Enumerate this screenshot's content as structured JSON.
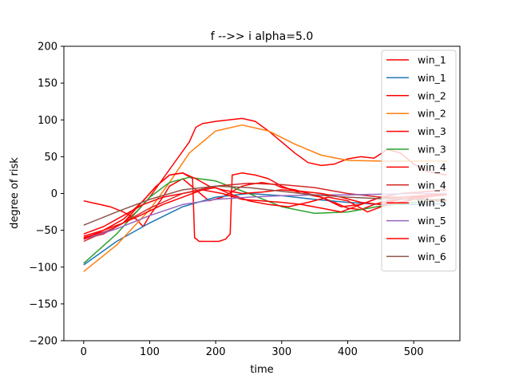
{
  "chart_data": {
    "type": "line",
    "title": "f -->> i  alpha=5.0",
    "xlabel": "time",
    "ylabel": "degree of risk",
    "xlim": [
      -30,
      570
    ],
    "ylim": [
      -200,
      200
    ],
    "xticks": [
      0,
      100,
      200,
      300,
      400,
      500
    ],
    "yticks": [
      -200,
      -150,
      -100,
      -50,
      0,
      50,
      100,
      150,
      200
    ],
    "grid": false,
    "legend_position": "top-right",
    "series": [
      {
        "name": "win_1",
        "color": "#ff0000",
        "x": [
          0,
          10,
          20,
          40,
          60,
          80,
          90,
          100,
          120,
          130,
          150,
          170,
          190,
          210,
          230,
          240,
          250,
          270,
          290,
          300,
          320,
          340,
          360,
          380,
          400,
          420,
          440,
          460,
          480,
          500,
          520,
          550
        ],
        "y": [
          -10,
          -12,
          -14,
          -18,
          -25,
          -35,
          -45,
          -30,
          -5,
          10,
          20,
          5,
          -10,
          -5,
          5,
          10,
          12,
          15,
          12,
          8,
          5,
          0,
          -5,
          -12,
          -20,
          -22,
          -15,
          -10,
          -8,
          -5,
          -2,
          0
        ]
      },
      {
        "name": "win_1",
        "color": "#1f77b4",
        "x": [
          0,
          50,
          100,
          150,
          200,
          250,
          300,
          350,
          400,
          450,
          500,
          550
        ],
        "y": [
          -97,
          -65,
          -40,
          -18,
          -5,
          0,
          -3,
          -8,
          -12,
          -15,
          -15,
          -14
        ]
      },
      {
        "name": "win_2",
        "color": "#ff0000",
        "x": [
          0,
          20,
          40,
          60,
          80,
          100,
          120,
          140,
          160,
          170,
          180,
          200,
          220,
          240,
          260,
          280,
          300,
          320,
          340,
          360,
          380,
          400,
          420,
          440,
          460,
          480,
          500,
          520,
          550
        ],
        "y": [
          -60,
          -55,
          -50,
          -40,
          -25,
          -5,
          20,
          45,
          70,
          90,
          95,
          98,
          100,
          102,
          98,
          85,
          70,
          55,
          42,
          38,
          40,
          47,
          50,
          48,
          60,
          55,
          40,
          30,
          25
        ]
      },
      {
        "name": "win_2",
        "color": "#ff7f0e",
        "x": [
          0,
          50,
          100,
          130,
          160,
          200,
          240,
          280,
          320,
          360,
          400,
          450,
          500,
          550
        ],
        "y": [
          -106,
          -70,
          -22,
          15,
          55,
          85,
          93,
          85,
          67,
          52,
          45,
          44,
          44,
          44
        ]
      },
      {
        "name": "win_3",
        "color": "#ff0000",
        "x": [
          0,
          30,
          60,
          90,
          110,
          130,
          150,
          165,
          168,
          175,
          190,
          205,
          215,
          222,
          225,
          240,
          260,
          280,
          300,
          330,
          360,
          390,
          420,
          450,
          480,
          510,
          550
        ],
        "y": [
          -62,
          -55,
          -40,
          -10,
          10,
          25,
          28,
          20,
          -60,
          -65,
          -65,
          -65,
          -62,
          -55,
          25,
          28,
          25,
          20,
          10,
          0,
          -5,
          -18,
          -15,
          -5,
          -5,
          -3,
          0
        ]
      },
      {
        "name": "win_3",
        "color": "#2ca02c",
        "x": [
          0,
          50,
          100,
          130,
          160,
          200,
          250,
          300,
          350,
          400,
          450,
          500,
          550
        ],
        "y": [
          -95,
          -55,
          -5,
          15,
          22,
          17,
          0,
          -18,
          -27,
          -25,
          -17,
          -12,
          -10
        ]
      },
      {
        "name": "win_4",
        "color": "#ff0000",
        "x": [
          0,
          30,
          60,
          90,
          120,
          150,
          180,
          210,
          240,
          270,
          300,
          330,
          360,
          390,
          420,
          450,
          480,
          510,
          550
        ],
        "y": [
          -55,
          -45,
          -30,
          -15,
          -5,
          0,
          5,
          0,
          -8,
          -10,
          -12,
          -15,
          -20,
          -25,
          -15,
          -5,
          0,
          2,
          5
        ]
      },
      {
        "name": "win_4",
        "color": "#d62728",
        "x": [
          0,
          50,
          100,
          150,
          200,
          250,
          300,
          350,
          400,
          450,
          500,
          550
        ],
        "y": [
          -65,
          -45,
          -20,
          0,
          10,
          14,
          12,
          8,
          0,
          -5,
          -8,
          -10
        ]
      },
      {
        "name": "win_5",
        "color": "#ff0000",
        "x": [
          0,
          30,
          60,
          90,
          120,
          150,
          180,
          200,
          220,
          250,
          280,
          310,
          340,
          370,
          400,
          430,
          460,
          490,
          520,
          550
        ],
        "y": [
          -58,
          -50,
          -40,
          -28,
          -15,
          -5,
          5,
          8,
          0,
          -10,
          -15,
          -18,
          -12,
          -5,
          -10,
          -25,
          -15,
          -10,
          -5,
          0
        ]
      },
      {
        "name": "win_5",
        "color": "#9467bd",
        "x": [
          0,
          50,
          100,
          150,
          200,
          250,
          300,
          350,
          400,
          450,
          500,
          550
        ],
        "y": [
          -62,
          -48,
          -30,
          -15,
          -8,
          -5,
          -3,
          -2,
          -2,
          -1,
          0,
          0
        ]
      },
      {
        "name": "win_6",
        "color": "#ff0000",
        "x": [
          0,
          30,
          60,
          90,
          110,
          130,
          150,
          170,
          190,
          210,
          240,
          270,
          300,
          330,
          360,
          390,
          420,
          450,
          480,
          510,
          550
        ],
        "y": [
          -62,
          -50,
          -35,
          -10,
          10,
          25,
          28,
          20,
          10,
          5,
          0,
          2,
          5,
          3,
          0,
          -5,
          -12,
          -15,
          -8,
          -5,
          -2
        ]
      },
      {
        "name": "win_6",
        "color": "#8c564b",
        "x": [
          0,
          50,
          100,
          150,
          200,
          250,
          300,
          350,
          400,
          450,
          500,
          550
        ],
        "y": [
          -43,
          -25,
          -8,
          5,
          10,
          8,
          3,
          -2,
          -5,
          -7,
          -8,
          -8
        ]
      }
    ]
  }
}
